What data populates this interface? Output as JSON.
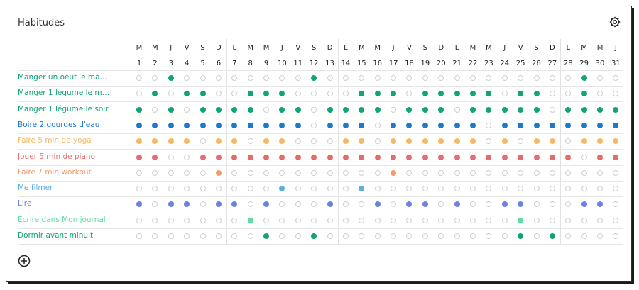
{
  "title": "Habitudes",
  "icons": {
    "settings": "settings-gear-icon",
    "add": "add-circle-icon"
  },
  "weekdays": [
    "M",
    "M",
    "J",
    "V",
    "S",
    "D",
    "L",
    "M",
    "M",
    "J",
    "V",
    "S",
    "D",
    "L",
    "M",
    "M",
    "J",
    "V",
    "S",
    "D",
    "L",
    "M",
    "M",
    "J",
    "V",
    "S",
    "D",
    "L",
    "M",
    "M",
    "J"
  ],
  "days": [
    "1",
    "2",
    "3",
    "4",
    "5",
    "6",
    "7",
    "8",
    "9",
    "10",
    "11",
    "12",
    "13",
    "14",
    "15",
    "16",
    "17",
    "18",
    "19",
    "20",
    "21",
    "22",
    "23",
    "24",
    "25",
    "26",
    "27",
    "28",
    "29",
    "30",
    "31"
  ],
  "habits": [
    {
      "name": "Manger un oeuf le ma…",
      "color": "#12a56d",
      "done": "0010000000010000000000000000100"
    },
    {
      "name": "Manger 1 légume le mi…",
      "color": "#12a56d",
      "done": "0101100111000011101111101100100"
    },
    {
      "name": "Manger 1 légume le soir",
      "color": "#12a56d",
      "done": "1010111101101111011101111101111"
    },
    {
      "name": "Boire 2 gourdes d'eau",
      "color": "#1f77d4",
      "done": "1111111111101110111111011111111"
    },
    {
      "name": "Faire 5 min de yoga",
      "color": "#f6b868",
      "done": "1111011011000110111111010110111"
    },
    {
      "name": "Jouer 5 min de piano",
      "color": "#e86b6b",
      "done": "1100111111111111111111111111011"
    },
    {
      "name": "Faire 7 min workout",
      "color": "#f5986a",
      "done": "0000010000000000100000000000000"
    },
    {
      "name": "Me filmer",
      "color": "#5bafe5",
      "done": "0000000001000010000000000000000"
    },
    {
      "name": "Lire",
      "color": "#6a82e6",
      "done": "1011011010001001011010011000110"
    },
    {
      "name": "Ecrire dans Mon journal",
      "color": "#5fdca3",
      "done": "0000000100000000000000001000000"
    },
    {
      "name": "Dormir avant minuit",
      "color": "#12a56d",
      "done": "0000000010010000000000001010000"
    }
  ]
}
